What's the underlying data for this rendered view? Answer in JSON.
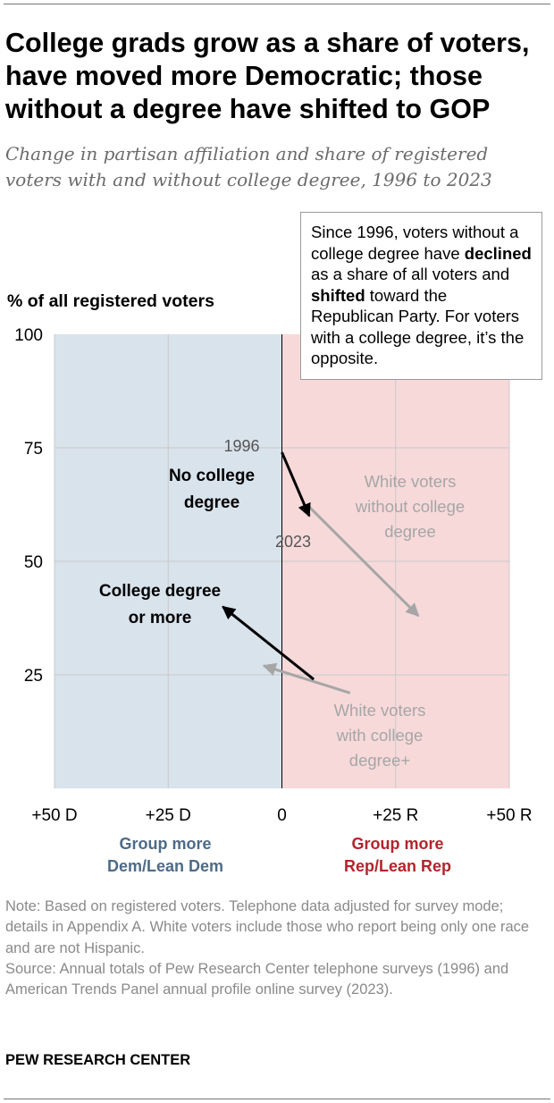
{
  "title": "College grads grow as a share of voters, have moved more Democratic; those without a degree have shifted to GOP",
  "subtitle": "Change in partisan affiliation and share of registered voters with and without college degree, 1996 to 2023",
  "callout": {
    "part1": "Since 1996, voters without a college degree have ",
    "bold1": "declined",
    "part2": " as a share of all voters and ",
    "bold2": "shifted",
    "part3": " toward the Republican Party. For voters with a college degree, it’s the opposite."
  },
  "chart_data": {
    "type": "scatter",
    "title": "",
    "xlabel": "",
    "ylabel": "% of all registered voters",
    "xlim": [
      -50,
      50
    ],
    "ylim": [
      0,
      100
    ],
    "x_ticks": [
      {
        "value": -50,
        "label": "+50 D"
      },
      {
        "value": -25,
        "label": "+25 D"
      },
      {
        "value": 0,
        "label": "0"
      },
      {
        "value": 25,
        "label": "+25 R"
      },
      {
        "value": 50,
        "label": "+50 R"
      }
    ],
    "y_ticks": [
      {
        "value": 100,
        "label": "100"
      },
      {
        "value": 75,
        "label": "75"
      },
      {
        "value": 50,
        "label": "50"
      },
      {
        "value": 25,
        "label": "25"
      }
    ],
    "grid": true,
    "regions": [
      {
        "name": "Group more Dem/Lean Dem",
        "from": -50,
        "to": 0,
        "color": "#d9e3ec"
      },
      {
        "name": "Group more Rep/Lean Rep",
        "from": 0,
        "to": 50,
        "color": "#f7d9da"
      }
    ],
    "series": [
      {
        "name": "No college degree",
        "color": "#000000",
        "points": [
          {
            "year": "1996",
            "x": 0,
            "y": 74
          },
          {
            "year": "2023",
            "x": 6,
            "y": 60
          }
        ]
      },
      {
        "name": "College degree or more",
        "color": "#000000",
        "points": [
          {
            "year": "1996",
            "x": 7,
            "y": 24
          },
          {
            "year": "2023",
            "x": -13,
            "y": 40
          }
        ]
      },
      {
        "name": "White voters without college degree",
        "color": "#a6a6a6",
        "points": [
          {
            "year": "1996",
            "x": 6,
            "y": 62
          },
          {
            "year": "2023",
            "x": 30,
            "y": 38
          }
        ]
      },
      {
        "name": "White voters with college degree+",
        "color": "#a6a6a6",
        "points": [
          {
            "year": "1996",
            "x": 15,
            "y": 21
          },
          {
            "year": "2023",
            "x": -4,
            "y": 27
          }
        ]
      }
    ],
    "annotations": {
      "year_start": "1996",
      "year_end": "2023",
      "no_college": [
        "No college",
        "degree"
      ],
      "college": [
        "College degree",
        "or more"
      ],
      "white_no_college": [
        "White voters",
        "without college",
        "degree"
      ],
      "white_college": [
        "White voters",
        "with college",
        "degree+"
      ]
    }
  },
  "side_labels": {
    "dem": [
      "Group more",
      "Dem/Lean Dem"
    ],
    "rep": [
      "Group more",
      "Rep/Lean Rep"
    ]
  },
  "notes": {
    "note": "Note: Based on registered voters. Telephone data adjusted for survey mode; details in Appendix A. White voters include those who report being only one race and are not Hispanic.",
    "source": "Source: Annual totals of Pew Research Center telephone surveys (1996) and American Trends Panel annual profile online survey (2023)."
  },
  "footer": "PEW RESEARCH CENTER"
}
